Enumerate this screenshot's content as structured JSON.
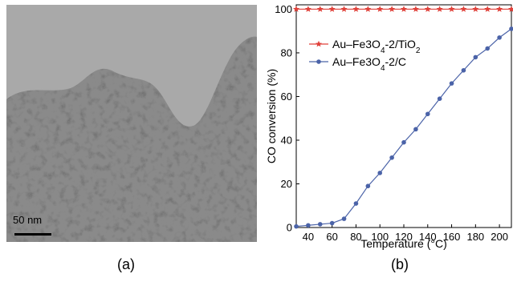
{
  "figure": {
    "panel_a": {
      "caption": "(a)",
      "scale_bar_label": "50 nm"
    },
    "panel_b": {
      "caption": "(b)"
    }
  },
  "colors": {
    "series_tio2": "#e0413a",
    "series_c": "#4b63a8",
    "reference_line": "#e0413a"
  },
  "chart_data": {
    "type": "line",
    "title": "",
    "xlabel": "Temperature (°C)",
    "ylabel": "CO conversion (%)",
    "xlim": [
      30,
      210
    ],
    "ylim": [
      0,
      102
    ],
    "x_ticks": [
      40,
      60,
      80,
      100,
      120,
      140,
      160,
      180,
      200
    ],
    "y_ticks": [
      0,
      20,
      40,
      60,
      80,
      100
    ],
    "grid": false,
    "legend_position": "upper-left",
    "series": [
      {
        "name": "Au–Fe3O4-2/TiO2",
        "marker": "star",
        "x": [
          30,
          40,
          50,
          60,
          70,
          80,
          90,
          100,
          110,
          120,
          130,
          140,
          150,
          160,
          170,
          180,
          190,
          200,
          210
        ],
        "values": [
          100,
          100,
          100,
          100,
          100,
          100,
          100,
          100,
          100,
          100,
          100,
          100,
          100,
          100,
          100,
          100,
          100,
          100,
          100
        ]
      },
      {
        "name": "Au–Fe3O4-2/C",
        "marker": "circle",
        "x": [
          30,
          40,
          50,
          60,
          70,
          80,
          90,
          100,
          110,
          120,
          130,
          140,
          150,
          160,
          170,
          180,
          190,
          200,
          210
        ],
        "values": [
          0.5,
          1,
          1.5,
          2,
          4,
          11,
          19,
          25,
          32,
          39,
          45,
          52,
          59,
          66,
          72,
          78,
          82,
          87,
          91
        ]
      }
    ]
  }
}
